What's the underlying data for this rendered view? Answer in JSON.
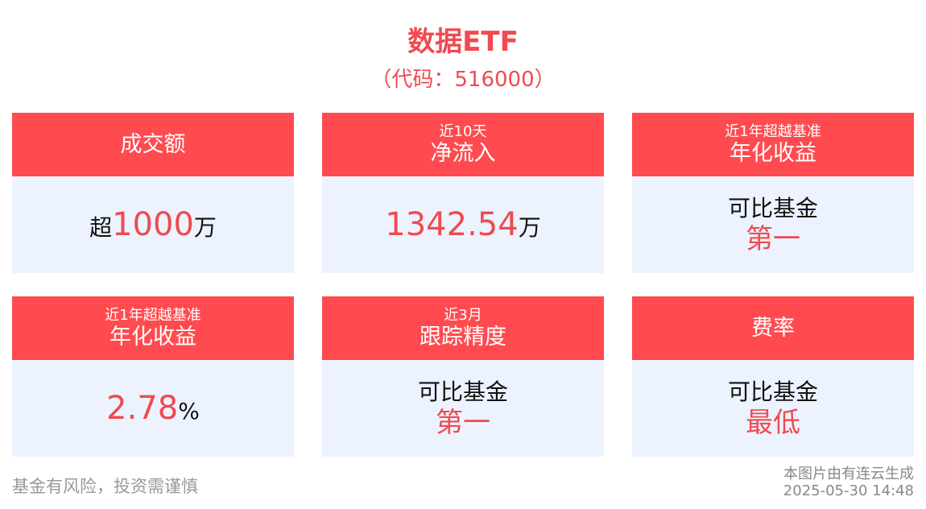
{
  "title": "数据ETF",
  "code": "（代码：516000）",
  "colors": {
    "accent": "#ff4b4f",
    "body_bg": "#ecf3ff"
  },
  "cards": [
    {
      "sub": "",
      "label": "成交额",
      "prefix": "超",
      "value": "1000",
      "unit": "万"
    },
    {
      "sub": "近10天",
      "label": "净流入",
      "prefix": "",
      "value": "1342.54",
      "unit": "万"
    },
    {
      "sub": "近1年超越基准",
      "label": "年化收益",
      "line1": "可比基金",
      "line2": "第一"
    },
    {
      "sub": "近1年超越基准",
      "label": "年化收益",
      "prefix": "",
      "value": "2.78",
      "unit": "%"
    },
    {
      "sub": "近3月",
      "label": "跟踪精度",
      "line1": "可比基金",
      "line2": "第一"
    },
    {
      "sub": "",
      "label": "费率",
      "line1": "可比基金",
      "line2": "最低"
    }
  ],
  "footer": {
    "disclaimer": "基金有风险，投资需谨慎",
    "source": "本图片由有连云生成",
    "timestamp": "2025-05-30 14:48"
  }
}
